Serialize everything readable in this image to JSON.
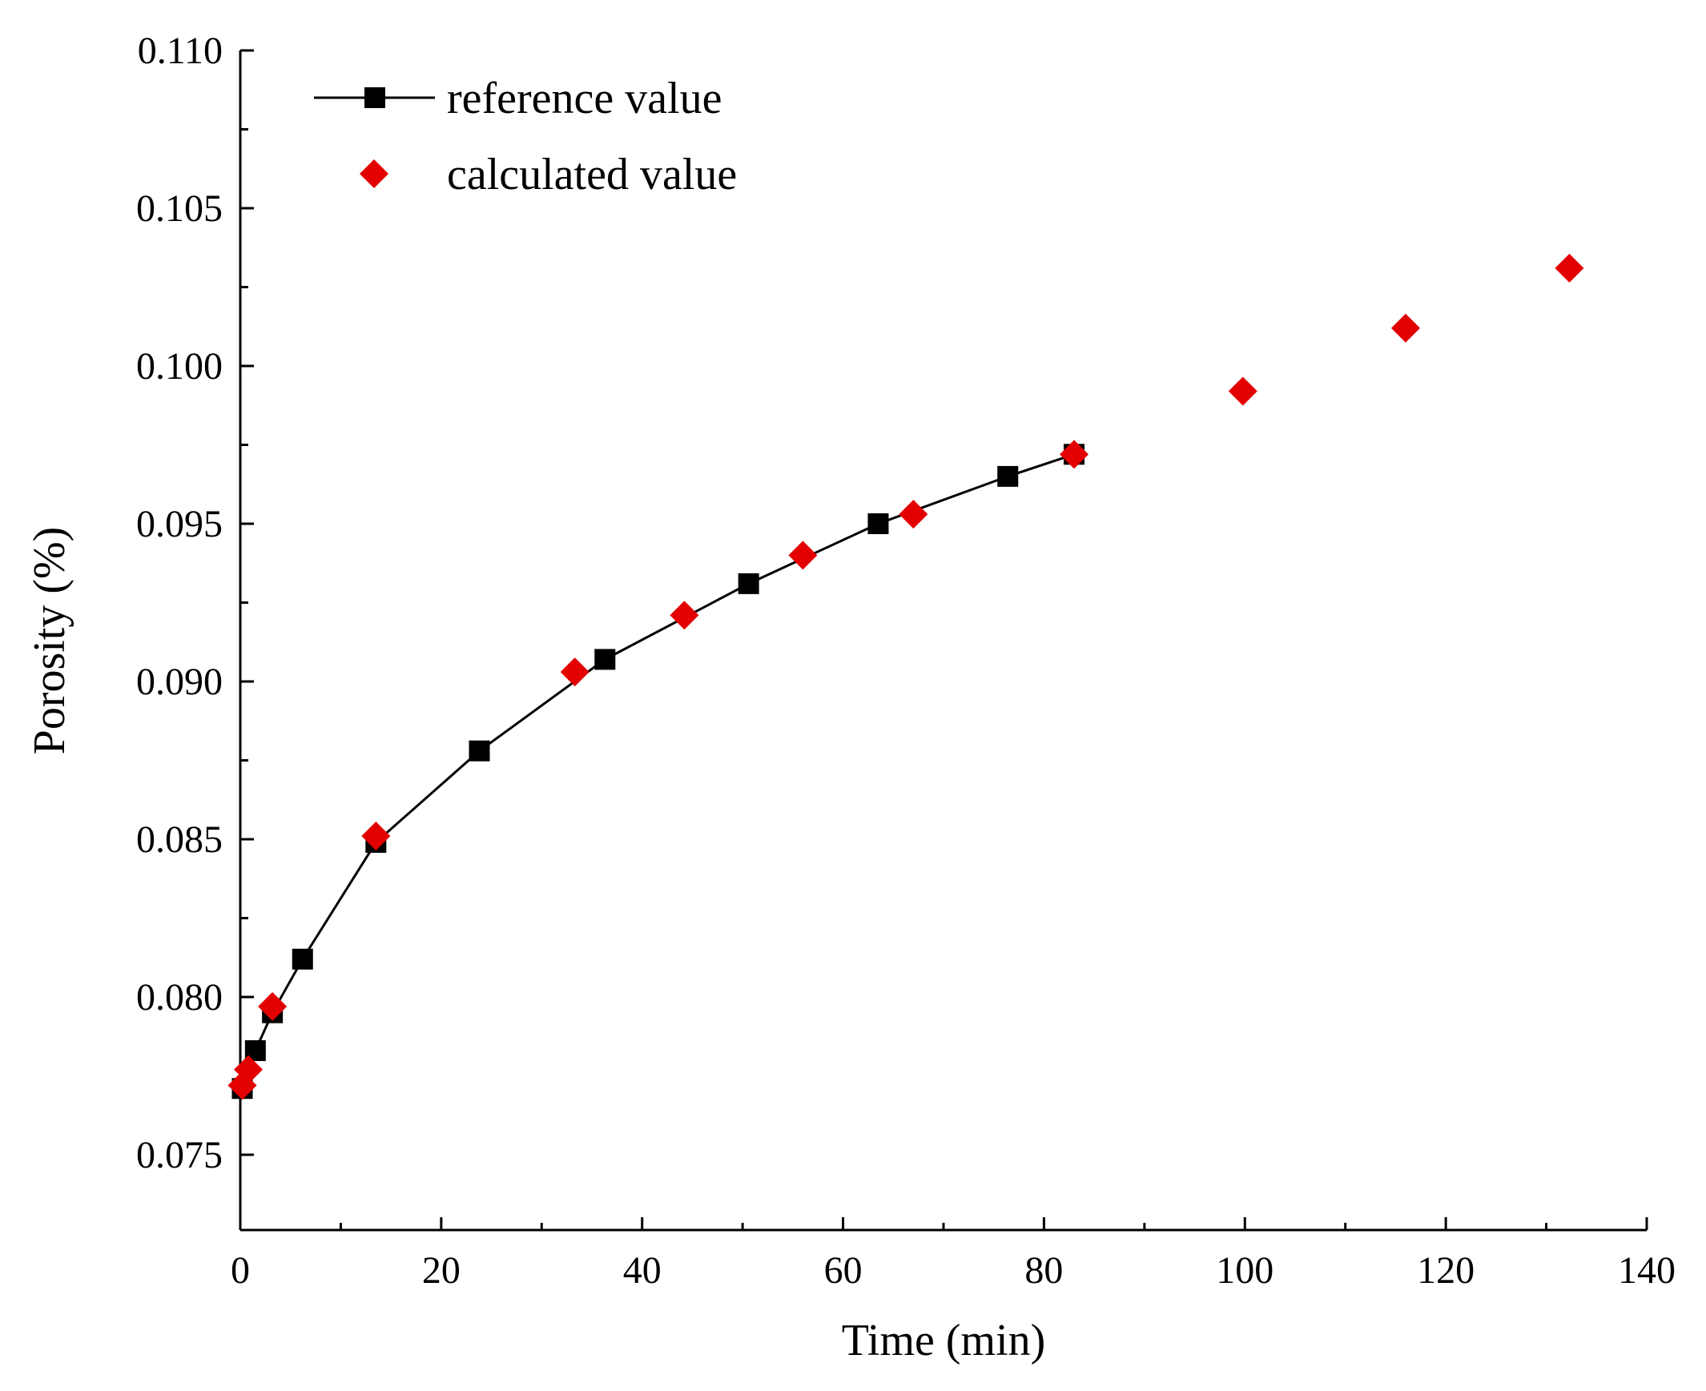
{
  "chart_data": {
    "type": "scatter",
    "title": "",
    "xlabel": "Time (min)",
    "ylabel": "Porosity (%)",
    "xlim": [
      0,
      140
    ],
    "ylim": [
      0.0725,
      0.11
    ],
    "xticks": [
      0,
      20,
      40,
      60,
      80,
      100,
      120,
      140
    ],
    "xtick_labels": [
      "0",
      "20",
      "40",
      "60",
      "80",
      "100",
      "120",
      "140"
    ],
    "yticks": [
      0.075,
      0.08,
      0.085,
      0.09,
      0.095,
      0.1,
      0.105,
      0.11
    ],
    "ytick_labels": [
      "0.075",
      "0.080",
      "0.085",
      "0.090",
      "0.095",
      "0.100",
      "0.105",
      "0.110"
    ],
    "legend_position": "top-left",
    "series": [
      {
        "name": "reference value",
        "marker": "square",
        "line": true,
        "color": "#000000",
        "x": [
          0.2,
          1.5,
          3.2,
          6.2,
          13.5,
          23.8,
          36.3,
          50.6,
          63.5,
          76.4,
          83.0
        ],
        "y": [
          0.0771,
          0.0783,
          0.0795,
          0.0812,
          0.0849,
          0.0878,
          0.0907,
          0.0931,
          0.095,
          0.0965,
          0.0972
        ]
      },
      {
        "name": "calculated value",
        "marker": "diamond",
        "line": false,
        "color": "#e30000",
        "x": [
          0.2,
          0.8,
          3.2,
          13.5,
          33.3,
          44.2,
          56.0,
          67.0,
          83.0,
          99.8,
          116.0,
          132.3
        ],
        "y": [
          0.0772,
          0.0777,
          0.0797,
          0.0851,
          0.0903,
          0.0921,
          0.094,
          0.0953,
          0.0972,
          0.0992,
          0.1012,
          0.1031
        ]
      }
    ]
  }
}
